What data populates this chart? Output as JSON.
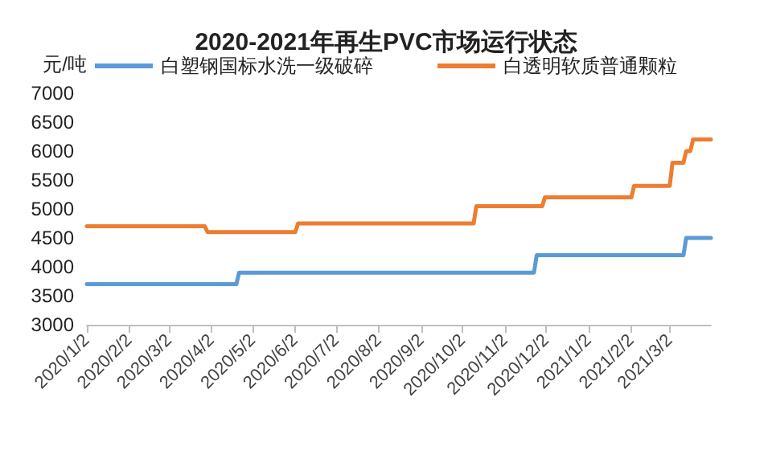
{
  "chart_data": {
    "type": "line",
    "title": "2020-2021年再生PVC市场运行状态",
    "ylabel": "元/吨",
    "legend": "top",
    "grid": false,
    "marker": "none",
    "line_style": "solid",
    "xlim": [
      "2020-01-02",
      "2021-04-01"
    ],
    "xticks": [
      {
        "value": "2020-01-02",
        "label": "2020/1/2"
      },
      {
        "value": "2020-02-02",
        "label": "2020/2/2"
      },
      {
        "value": "2020-03-02",
        "label": "2020/3/2"
      },
      {
        "value": "2020-04-02",
        "label": "2020/4/2"
      },
      {
        "value": "2020-05-02",
        "label": "2020/5/2"
      },
      {
        "value": "2020-06-02",
        "label": "2020/6/2"
      },
      {
        "value": "2020-07-02",
        "label": "2020/7/2"
      },
      {
        "value": "2020-08-02",
        "label": "2020/8/2"
      },
      {
        "value": "2020-09-02",
        "label": "2020/9/2"
      },
      {
        "value": "2020-10-02",
        "label": "2020/10/2"
      },
      {
        "value": "2020-11-02",
        "label": "2020/11/2"
      },
      {
        "value": "2020-12-02",
        "label": "2020/12/2"
      },
      {
        "value": "2021-01-02",
        "label": "2021/1/2"
      },
      {
        "value": "2021-02-02",
        "label": "2021/2/2"
      },
      {
        "value": "2021-03-02",
        "label": "2021/3/2"
      }
    ],
    "ylim": [
      3000,
      7000
    ],
    "yticks": [
      3000,
      3500,
      4000,
      4500,
      5000,
      5500,
      6000,
      6500,
      7000
    ],
    "series": [
      {
        "name": "白塑钢国标水洗一级破碎",
        "color": "#5b9bd5",
        "x": [
          "2020-01-02",
          "2020-04-20",
          "2020-04-22",
          "2020-11-23",
          "2020-11-25",
          "2021-03-12",
          "2021-03-14",
          "2021-04-01"
        ],
        "values": [
          3700,
          3700,
          3900,
          3900,
          4200,
          4200,
          4500,
          4500
        ]
      },
      {
        "name": "白透明软质普通颗粒",
        "color": "#ed7d31",
        "x": [
          "2020-01-02",
          "2020-03-28",
          "2020-03-30",
          "2020-06-02",
          "2020-06-04",
          "2020-10-10",
          "2020-10-12",
          "2020-11-29",
          "2020-12-01",
          "2021-02-02",
          "2021-02-04",
          "2021-03-02",
          "2021-03-04",
          "2021-03-12",
          "2021-03-14",
          "2021-03-17",
          "2021-03-19",
          "2021-04-01"
        ],
        "values": [
          4700,
          4700,
          4600,
          4600,
          4750,
          4750,
          5050,
          5050,
          5200,
          5200,
          5400,
          5400,
          5800,
          5800,
          6000,
          6000,
          6200,
          6200
        ]
      }
    ]
  }
}
